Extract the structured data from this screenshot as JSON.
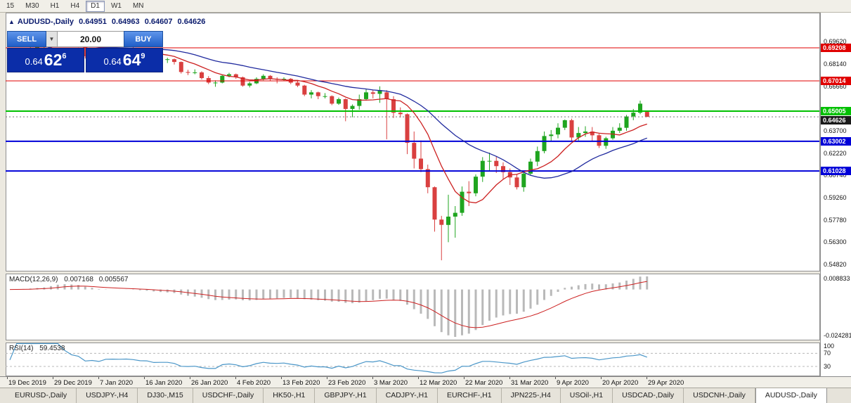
{
  "toolbar": {
    "timeframes": [
      "15",
      "M30",
      "H1",
      "H4",
      "D1",
      "W1",
      "MN"
    ],
    "active": "D1"
  },
  "chart": {
    "title": "AUDUSD-,Daily",
    "collapse_icon": "▲"
  },
  "trade_panel": {
    "sell_label": "SELL",
    "buy_label": "BUY",
    "volume": "20.00",
    "caret_icon": "▼",
    "sell_price": {
      "big": "0.64",
      "mid": "62",
      "sup": "6"
    },
    "buy_price": {
      "big": "0.64",
      "mid": "64",
      "sup": "9"
    }
  },
  "chart_data": {
    "type": "candlestick",
    "symbol": "AUDUSD-",
    "timeframe": "Daily",
    "ohlc_display": {
      "open": "0.64951",
      "high": "0.64963",
      "low": "0.64607",
      "close": "0.64626"
    },
    "up_color": "#1fa51f",
    "down_color": "#d94040",
    "candles": [
      [
        0.687,
        0.6895,
        0.6855,
        0.6885
      ],
      [
        0.6885,
        0.691,
        0.6875,
        0.69
      ],
      [
        0.69,
        0.6915,
        0.689,
        0.6905
      ],
      [
        0.6905,
        0.6928,
        0.6898,
        0.692
      ],
      [
        0.692,
        0.6938,
        0.691,
        0.693
      ],
      [
        0.693,
        0.6952,
        0.6922,
        0.6945
      ],
      [
        0.6945,
        0.7,
        0.694,
        0.6995
      ],
      [
        0.6995,
        0.703,
        0.6985,
        0.7021
      ],
      [
        0.7021,
        0.7025,
        0.698,
        0.6985
      ],
      [
        0.6985,
        0.6995,
        0.694,
        0.695
      ],
      [
        0.695,
        0.696,
        0.6925,
        0.6935
      ],
      [
        0.6935,
        0.694,
        0.685,
        0.6865
      ],
      [
        0.6865,
        0.6885,
        0.6855,
        0.6875
      ],
      [
        0.6875,
        0.688,
        0.684,
        0.6855
      ],
      [
        0.6855,
        0.6905,
        0.685,
        0.69
      ],
      [
        0.69,
        0.691,
        0.6885,
        0.6903
      ],
      [
        0.6903,
        0.691,
        0.688,
        0.69
      ],
      [
        0.69,
        0.692,
        0.689,
        0.6905
      ],
      [
        0.6905,
        0.693,
        0.6885,
        0.6895
      ],
      [
        0.6895,
        0.69,
        0.6865,
        0.6875
      ],
      [
        0.6875,
        0.688,
        0.6855,
        0.6873
      ],
      [
        0.6873,
        0.6878,
        0.683,
        0.6843
      ],
      [
        0.6843,
        0.6858,
        0.6833,
        0.6845
      ],
      [
        0.6845,
        0.6855,
        0.682,
        0.6845
      ],
      [
        0.6845,
        0.685,
        0.681,
        0.6827
      ],
      [
        0.6827,
        0.683,
        0.675,
        0.676
      ],
      [
        0.676,
        0.6775,
        0.674,
        0.6755
      ],
      [
        0.6755,
        0.6778,
        0.6745,
        0.6758
      ],
      [
        0.6758,
        0.6765,
        0.671,
        0.672
      ],
      [
        0.672,
        0.6733,
        0.668,
        0.669
      ],
      [
        0.669,
        0.6705,
        0.6662,
        0.669
      ],
      [
        0.669,
        0.674,
        0.6685,
        0.6735
      ],
      [
        0.6735,
        0.6755,
        0.6725,
        0.6745
      ],
      [
        0.6745,
        0.675,
        0.6715,
        0.6725
      ],
      [
        0.6725,
        0.673,
        0.6663,
        0.667
      ],
      [
        0.667,
        0.6695,
        0.6658,
        0.6685
      ],
      [
        0.6685,
        0.6725,
        0.668,
        0.6715
      ],
      [
        0.6715,
        0.6745,
        0.6705,
        0.6735
      ],
      [
        0.6735,
        0.674,
        0.67,
        0.6715
      ],
      [
        0.6715,
        0.6725,
        0.6685,
        0.671
      ],
      [
        0.671,
        0.6725,
        0.67,
        0.6715
      ],
      [
        0.6715,
        0.672,
        0.668,
        0.669
      ],
      [
        0.669,
        0.67,
        0.666,
        0.667
      ],
      [
        0.667,
        0.6675,
        0.66,
        0.661
      ],
      [
        0.661,
        0.664,
        0.6585,
        0.6625
      ],
      [
        0.6625,
        0.663,
        0.658,
        0.66
      ],
      [
        0.66,
        0.662,
        0.6585,
        0.66
      ],
      [
        0.66,
        0.6605,
        0.654,
        0.655
      ],
      [
        0.655,
        0.659,
        0.6542,
        0.658
      ],
      [
        0.658,
        0.6585,
        0.6433,
        0.6515
      ],
      [
        0.6515,
        0.6545,
        0.646,
        0.6535
      ],
      [
        0.6535,
        0.661,
        0.651,
        0.658
      ],
      [
        0.658,
        0.6645,
        0.657,
        0.6625
      ],
      [
        0.6625,
        0.664,
        0.6585,
        0.6615
      ],
      [
        0.6615,
        0.6665,
        0.6555,
        0.664
      ],
      [
        0.6625,
        0.664,
        0.6313,
        0.658
      ],
      [
        0.658,
        0.66,
        0.6455,
        0.649
      ],
      [
        0.649,
        0.6525,
        0.6458,
        0.648
      ],
      [
        0.648,
        0.6485,
        0.6215,
        0.629
      ],
      [
        0.629,
        0.6365,
        0.612,
        0.6185
      ],
      [
        0.6185,
        0.6305,
        0.6095,
        0.6115
      ],
      [
        0.6115,
        0.6145,
        0.5955,
        0.5995
      ],
      [
        0.5995,
        0.6,
        0.57,
        0.578
      ],
      [
        0.578,
        0.5805,
        0.551,
        0.5745
      ],
      [
        0.5745,
        0.5945,
        0.563,
        0.58
      ],
      [
        0.58,
        0.587,
        0.566,
        0.5825
      ],
      [
        0.5825,
        0.6,
        0.5805,
        0.5965
      ],
      [
        0.5965,
        0.6035,
        0.587,
        0.5955
      ],
      [
        0.5955,
        0.608,
        0.5935,
        0.6065
      ],
      [
        0.6065,
        0.6195,
        0.603,
        0.617
      ],
      [
        0.617,
        0.6225,
        0.6105,
        0.617
      ],
      [
        0.617,
        0.62,
        0.609,
        0.6135
      ],
      [
        0.6135,
        0.616,
        0.605,
        0.6095
      ],
      [
        0.6095,
        0.612,
        0.601,
        0.606
      ],
      [
        0.606,
        0.608,
        0.598,
        0.5995
      ],
      [
        0.5995,
        0.6095,
        0.5965,
        0.6085
      ],
      [
        0.6085,
        0.6185,
        0.6075,
        0.6165
      ],
      [
        0.6165,
        0.6265,
        0.6135,
        0.6235
      ],
      [
        0.6235,
        0.6365,
        0.622,
        0.6335
      ],
      [
        0.6335,
        0.6375,
        0.63,
        0.6345
      ],
      [
        0.6345,
        0.642,
        0.632,
        0.639
      ],
      [
        0.639,
        0.6445,
        0.6375,
        0.644
      ],
      [
        0.644,
        0.645,
        0.63,
        0.6325
      ],
      [
        0.6325,
        0.6395,
        0.6305,
        0.6355
      ],
      [
        0.6355,
        0.64,
        0.633,
        0.6365
      ],
      [
        0.6365,
        0.6395,
        0.63,
        0.634
      ],
      [
        0.634,
        0.635,
        0.6255,
        0.627
      ],
      [
        0.627,
        0.633,
        0.625,
        0.632
      ],
      [
        0.632,
        0.6395,
        0.631,
        0.637
      ],
      [
        0.637,
        0.642,
        0.6355,
        0.639
      ],
      [
        0.639,
        0.6475,
        0.637,
        0.6465
      ],
      [
        0.6465,
        0.6515,
        0.644,
        0.649
      ],
      [
        0.649,
        0.657,
        0.648,
        0.655
      ],
      [
        0.64951,
        0.64963,
        0.64607,
        0.64626
      ]
    ],
    "horizontal_lines": [
      {
        "price": 0.69208,
        "label": "0.69208",
        "color": "#e00000",
        "width": 1
      },
      {
        "price": 0.67014,
        "label": "0.67014",
        "color": "#e00000",
        "width": 1
      },
      {
        "price": 0.65005,
        "label": "0.65005",
        "color": "#00c000",
        "width": 2
      },
      {
        "price": 0.63002,
        "label": "0.63002",
        "color": "#0000d8",
        "width": 2
      },
      {
        "price": 0.61028,
        "label": "0.61028",
        "color": "#0000d8",
        "width": 2
      }
    ],
    "bid_line": {
      "price": 0.64626,
      "label": "0.64626",
      "color": "#1a1a1a"
    },
    "moving_averages": [
      {
        "period": 8,
        "color": "#cc2020"
      },
      {
        "period": 21,
        "color": "#202a9e"
      }
    ],
    "y_axis_ticks": [
      0.6962,
      0.6814,
      0.6666,
      0.637,
      0.6222,
      0.6074,
      0.5926,
      0.5778,
      0.563,
      0.5482
    ],
    "x_axis_labels": [
      "19 Dec 2019",
      "29 Dec 2019",
      "7 Jan 2020",
      "16 Jan 2020",
      "26 Jan 2020",
      "4 Feb 2020",
      "13 Feb 2020",
      "23 Feb 2020",
      "3 Mar 2020",
      "12 Mar 2020",
      "22 Mar 2020",
      "31 Mar 2020",
      "9 Apr 2020",
      "20 Apr 2020",
      "29 Apr 2020"
    ],
    "macd": {
      "title": "MACD(12,26,9)",
      "value_main": "0.007168",
      "value_signal": "0.005567",
      "fast": 12,
      "slow": 26,
      "signal": 9,
      "axis_labels": [
        "0.008833",
        "-0.024281"
      ],
      "histogram_color": "#b9b9b9",
      "signal_color": "#cc2020"
    },
    "rsi": {
      "title": "RSI(14)",
      "value": "59.4538",
      "period": 14,
      "axis_labels": [
        "100",
        "70",
        "30"
      ],
      "levels": [
        70,
        30
      ],
      "line_color": "#4a96c8"
    }
  },
  "tabs": [
    {
      "label": "EURUSD-,Daily",
      "active": false
    },
    {
      "label": "USDJPY-,H4",
      "active": false
    },
    {
      "label": "DJ30-,M15",
      "active": false
    },
    {
      "label": "USDCHF-,Daily",
      "active": false
    },
    {
      "label": "HK50-,H1",
      "active": false
    },
    {
      "label": "GBPJPY-,H1",
      "active": false
    },
    {
      "label": "CADJPY-,H1",
      "active": false
    },
    {
      "label": "EURCHF-,H1",
      "active": false
    },
    {
      "label": "JPN225-,H4",
      "active": false
    },
    {
      "label": "USOil-,H1",
      "active": false
    },
    {
      "label": "USDCAD-,Daily",
      "active": false
    },
    {
      "label": "USDCNH-,Daily",
      "active": false
    },
    {
      "label": "AUDUSD-,Daily",
      "active": true
    }
  ]
}
